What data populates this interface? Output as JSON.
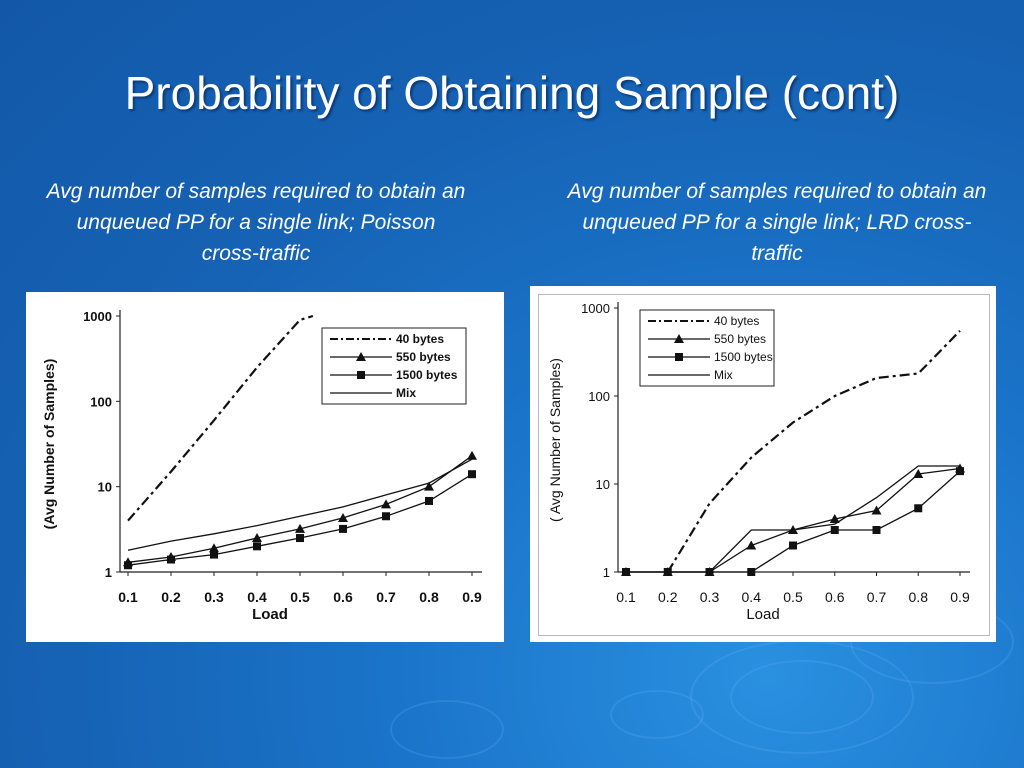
{
  "slide": {
    "title": "Probability of Obtaining Sample (cont)",
    "caption_left": "Avg number of samples required to obtain an unqueued PP for a single link; Poisson cross-traffic",
    "caption_right": "Avg number of samples required to obtain an unqueued PP for a single link; LRD cross-traffic"
  },
  "chart_data": [
    {
      "type": "line",
      "xlabel": "Load",
      "ylabel": "(Avg Number of Samples)",
      "yscale": "log",
      "ylim": [
        1,
        1000
      ],
      "xlim": [
        0.1,
        0.9
      ],
      "x_ticks": [
        "0.1",
        "0.2",
        "0.3",
        "0.4",
        "0.5",
        "0.6",
        "0.7",
        "0.8",
        "0.9"
      ],
      "y_ticks": [
        "1",
        "10",
        "100",
        "1000"
      ],
      "legend_position": "top-right",
      "series": [
        {
          "name": "40 bytes",
          "x": [
            0.1,
            0.2,
            0.3,
            0.4,
            0.5,
            0.53
          ],
          "y": [
            4,
            15,
            60,
            250,
            900,
            1000
          ],
          "style": "dashdot",
          "marker": "none"
        },
        {
          "name": "550 bytes",
          "x": [
            0.1,
            0.2,
            0.3,
            0.4,
            0.5,
            0.6,
            0.7,
            0.8,
            0.9
          ],
          "y": [
            1.3,
            1.5,
            1.9,
            2.5,
            3.2,
            4.3,
            6.2,
            10,
            23
          ],
          "style": "solid",
          "marker": "triangle"
        },
        {
          "name": "1500 bytes",
          "x": [
            0.1,
            0.2,
            0.3,
            0.4,
            0.5,
            0.6,
            0.7,
            0.8,
            0.9
          ],
          "y": [
            1.2,
            1.4,
            1.6,
            2.0,
            2.5,
            3.2,
            4.5,
            6.8,
            14
          ],
          "style": "solid",
          "marker": "square"
        },
        {
          "name": "Mix",
          "x": [
            0.1,
            0.2,
            0.3,
            0.4,
            0.5,
            0.6,
            0.7,
            0.8,
            0.9
          ],
          "y": [
            1.8,
            2.3,
            2.8,
            3.5,
            4.5,
            5.8,
            8,
            11,
            21
          ],
          "style": "solid",
          "marker": "none"
        }
      ]
    },
    {
      "type": "line",
      "xlabel": "Load",
      "ylabel": "( Avg Number of Samples)",
      "yscale": "log",
      "ylim": [
        1,
        1000
      ],
      "xlim": [
        0.1,
        0.9
      ],
      "x_ticks": [
        "0.1",
        "0.2",
        "0.3",
        "0.4",
        "0.5",
        "0.6",
        "0.7",
        "0.8",
        "0.9"
      ],
      "y_ticks": [
        "1",
        "10",
        "100",
        "1000"
      ],
      "legend_position": "top-left",
      "series": [
        {
          "name": "40 bytes",
          "x": [
            0.2,
            0.3,
            0.4,
            0.5,
            0.6,
            0.7,
            0.8,
            0.9
          ],
          "y": [
            1,
            6,
            20,
            50,
            100,
            160,
            180,
            550
          ],
          "style": "dashdot",
          "marker": "none"
        },
        {
          "name": "550 bytes",
          "x": [
            0.1,
            0.2,
            0.3,
            0.4,
            0.5,
            0.6,
            0.7,
            0.8,
            0.9
          ],
          "y": [
            1,
            1,
            1,
            2,
            3,
            4,
            5,
            13,
            15
          ],
          "style": "solid",
          "marker": "triangle"
        },
        {
          "name": "1500 bytes",
          "x": [
            0.1,
            0.2,
            0.3,
            0.4,
            0.5,
            0.6,
            0.7,
            0.8,
            0.9
          ],
          "y": [
            1,
            1,
            1,
            1,
            2,
            3,
            3,
            5.3,
            14
          ],
          "style": "solid",
          "marker": "square"
        },
        {
          "name": "Mix",
          "x": [
            0.1,
            0.2,
            0.3,
            0.4,
            0.5,
            0.6,
            0.7,
            0.8,
            0.9
          ],
          "y": [
            1,
            1,
            1,
            3,
            3,
            3.5,
            7,
            16,
            16
          ],
          "style": "solid",
          "marker": "none"
        }
      ]
    }
  ]
}
